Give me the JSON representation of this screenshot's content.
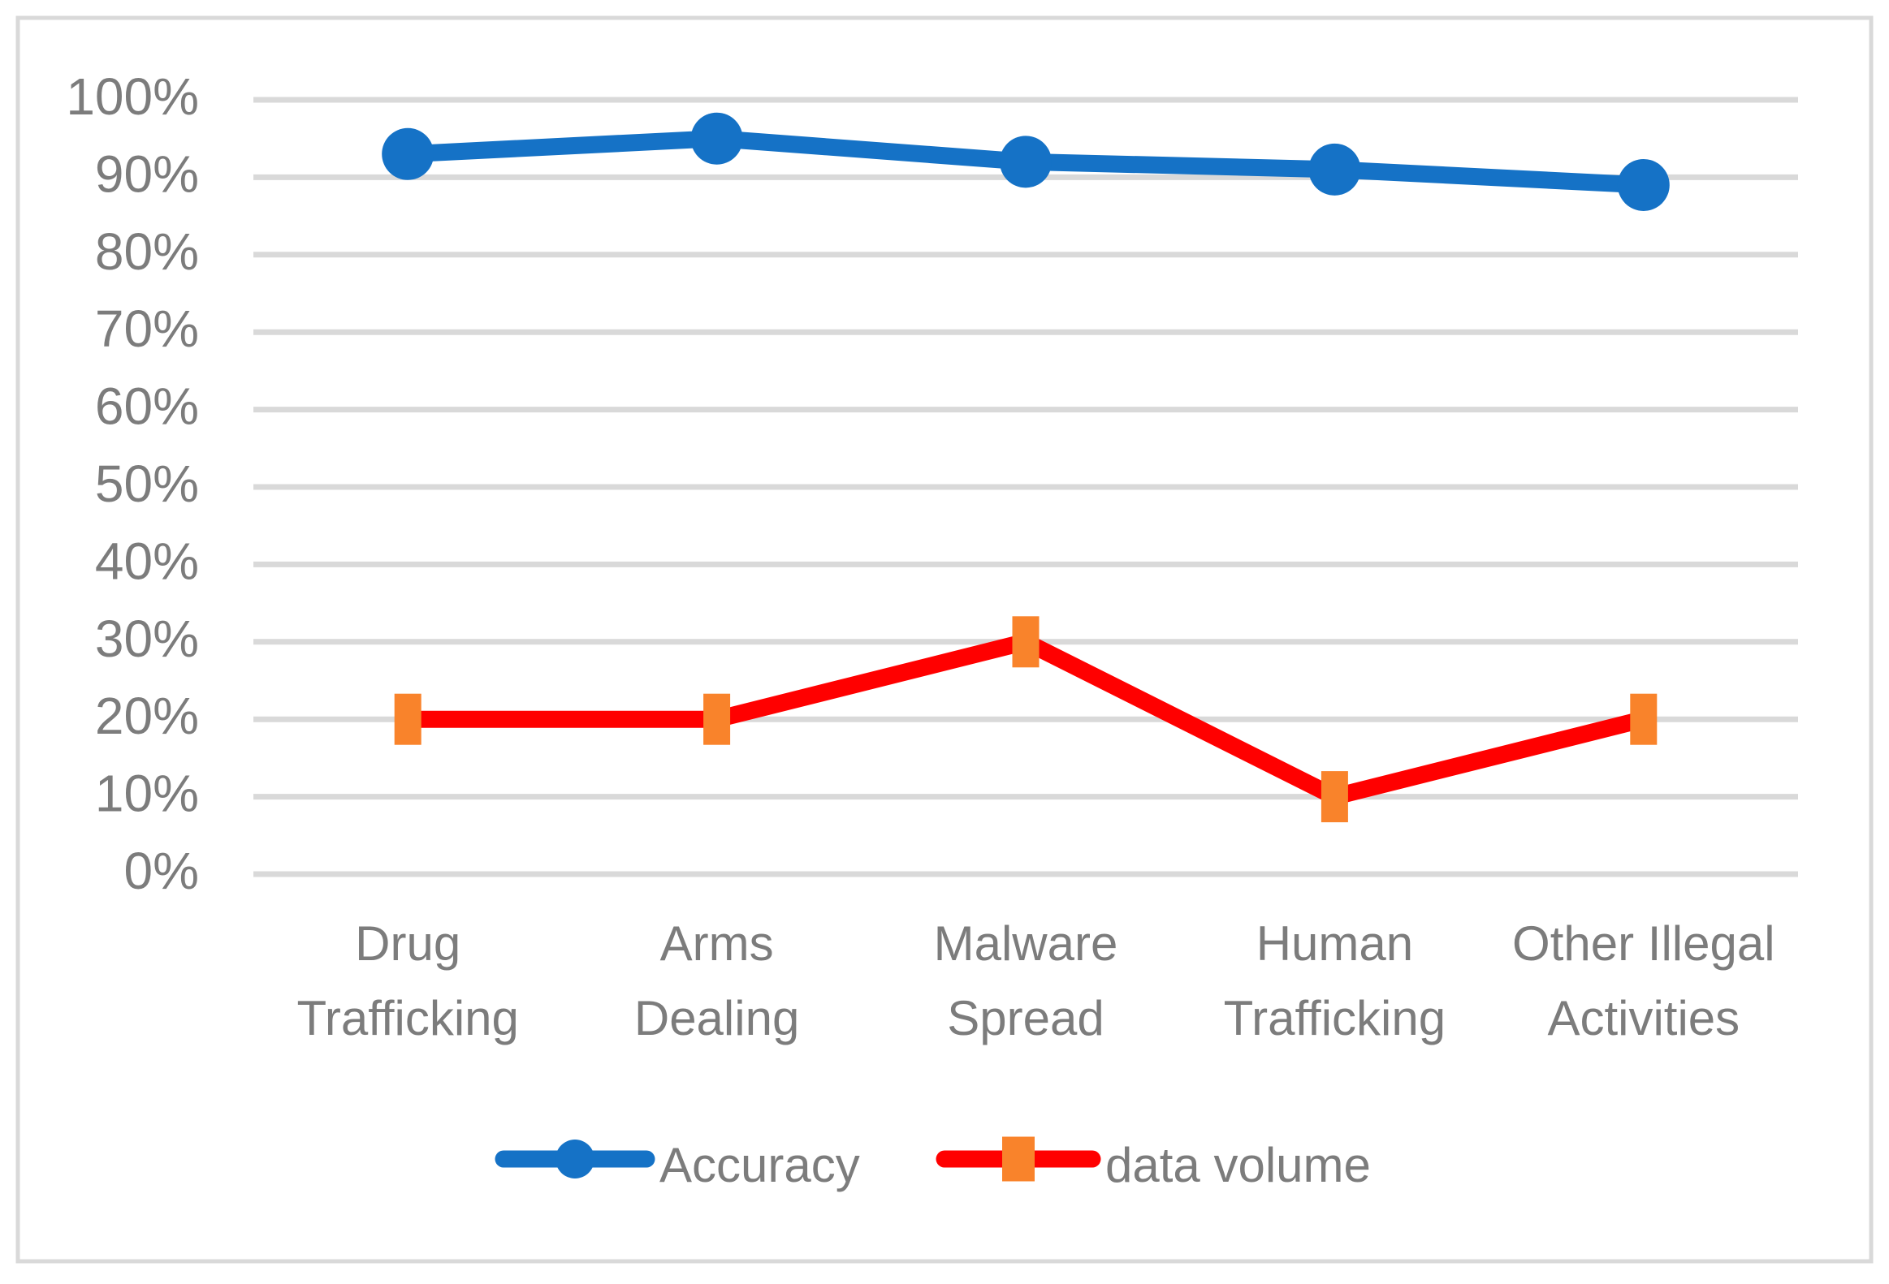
{
  "chart": {
    "title": "",
    "legend": {
      "items": [
        {
          "label": "Accuracy"
        },
        {
          "label": "data volume"
        }
      ]
    }
  },
  "chart_data": {
    "type": "line",
    "categories": [
      "Drug Trafficking",
      "Arms Dealing",
      "Malware Spread",
      "Human Trafficking",
      "Other Illegal Activities"
    ],
    "category_label_lines": [
      [
        "Drug",
        "Trafficking"
      ],
      [
        "Arms",
        "Dealing"
      ],
      [
        "Malware",
        "Spread"
      ],
      [
        "Human",
        "Trafficking"
      ],
      [
        "Other Illegal",
        "Activities"
      ]
    ],
    "series": [
      {
        "name": "Accuracy",
        "values": [
          93,
          95,
          92,
          91,
          89
        ],
        "unit": "%",
        "line_color": "#1572C6",
        "marker": "circle",
        "marker_color": "#1572C6"
      },
      {
        "name": "data volume",
        "values": [
          20,
          20,
          30,
          10,
          20
        ],
        "unit": "%",
        "line_color": "#FF0000",
        "marker": "square",
        "marker_color": "#F9832B"
      }
    ],
    "y_axis": {
      "min": 0,
      "max": 100,
      "step": 10,
      "tick_labels": [
        "0%",
        "10%",
        "20%",
        "30%",
        "40%",
        "50%",
        "60%",
        "70%",
        "80%",
        "90%",
        "100%"
      ]
    },
    "x_axis_label": "",
    "y_axis_label": "",
    "grid": "horizontal",
    "legend_position": "bottom",
    "colors": {
      "axis_text": "#7C7C7C",
      "gridline": "#D9D9D9",
      "frame_border": "#D9D9D9",
      "background": "#FFFFFF"
    }
  }
}
